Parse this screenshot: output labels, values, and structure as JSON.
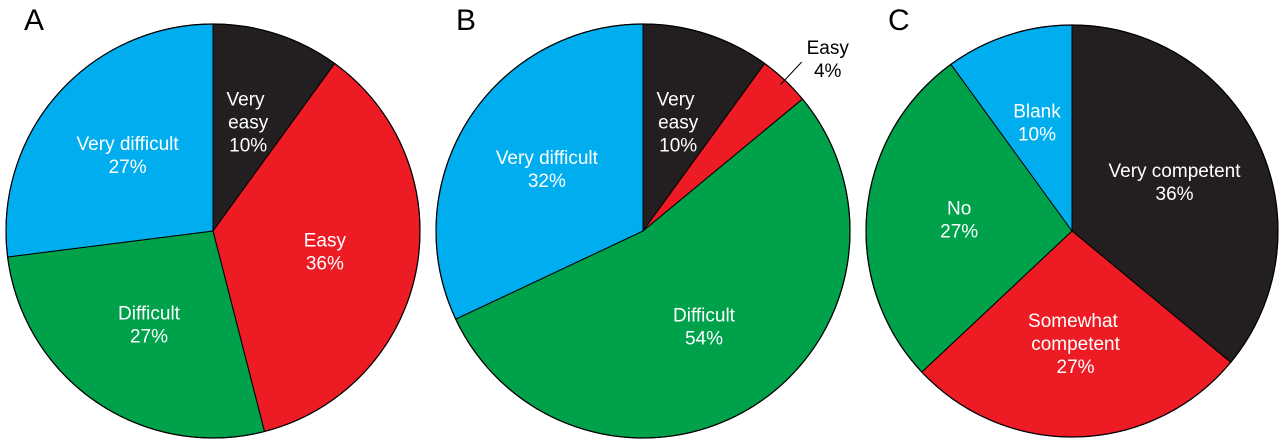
{
  "chart_data": [
    {
      "type": "pie",
      "title": "A",
      "categories": [
        "Very easy",
        "Easy",
        "Difficult",
        "Very difficult"
      ],
      "values": [
        10,
        36,
        27,
        27
      ],
      "value_labels": [
        "10%",
        "36%",
        "27%",
        "27%"
      ],
      "colors": [
        "#231f20",
        "#ed1c24",
        "#00a14b",
        "#00aeef"
      ]
    },
    {
      "type": "pie",
      "title": "B",
      "categories": [
        "Very easy",
        "Easy",
        "Difficult",
        "Very difficult"
      ],
      "values": [
        10,
        4,
        54,
        32
      ],
      "value_labels": [
        "10%",
        "4%",
        "54%",
        "32%"
      ],
      "colors": [
        "#231f20",
        "#ed1c24",
        "#00a14b",
        "#00aeef"
      ]
    },
    {
      "type": "pie",
      "title": "C",
      "categories": [
        "Very competent",
        "Somewhat competent",
        "No",
        "Blank"
      ],
      "values": [
        36,
        27,
        27,
        10
      ],
      "value_labels": [
        "36%",
        "27%",
        "27%",
        "10%"
      ],
      "colors": [
        "#231f20",
        "#ed1c24",
        "#00a14b",
        "#00aeef"
      ]
    }
  ]
}
